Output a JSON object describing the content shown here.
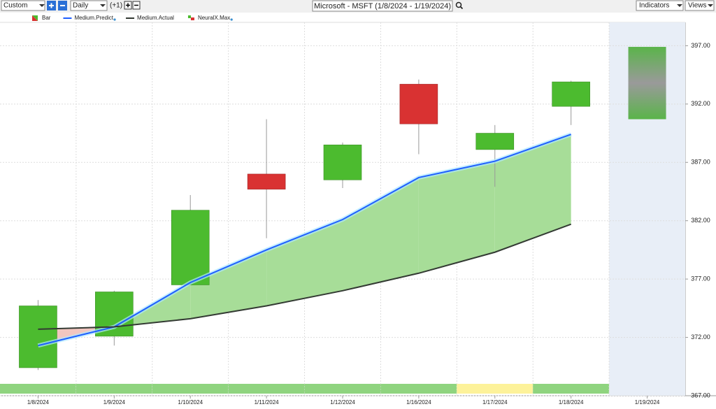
{
  "toolbar": {
    "period": "Custom",
    "interval": "Daily",
    "offset": "(+1)",
    "title": "Microsoft - MSFT (1/8/2024 - 1/19/2024)",
    "indicators": "Indicators",
    "views": "Views"
  },
  "chart_data": {
    "type": "candlestick",
    "categories": [
      "1/8/2024",
      "1/9/2024",
      "1/10/2024",
      "1/11/2024",
      "1/12/2024",
      "1/16/2024",
      "1/17/2024",
      "1/18/2024",
      "1/19/2024"
    ],
    "candles": {
      "name": "Bar",
      "open": [
        369.4,
        372.1,
        376.5,
        386.0,
        385.5,
        393.7,
        388.1,
        391.8,
        null
      ],
      "high": [
        375.2,
        376.0,
        384.2,
        390.7,
        388.7,
        394.1,
        390.2,
        394.0,
        null
      ],
      "low": [
        369.2,
        371.3,
        376.5,
        380.5,
        384.8,
        387.7,
        384.9,
        390.2,
        null
      ],
      "close": [
        374.7,
        375.9,
        382.9,
        384.7,
        388.5,
        390.3,
        389.5,
        393.9,
        null
      ],
      "up_color": "#4cbb2f",
      "down_color": "#d93232"
    },
    "series": [
      {
        "name": "Medium.Predict",
        "color": "#1f5fff",
        "values": [
          371.3,
          372.9,
          376.7,
          379.5,
          382.1,
          385.7,
          387.1,
          389.4,
          null
        ]
      },
      {
        "name": "Medium.Actual",
        "color": "#333a33",
        "values": [
          372.7,
          372.9,
          373.6,
          374.7,
          376.0,
          377.5,
          379.3,
          381.7,
          null
        ]
      }
    ],
    "neuralx": {
      "name": "NeuralX.Max",
      "low": [
        null,
        null,
        null,
        null,
        null,
        null,
        null,
        null,
        390.7
      ],
      "high": [
        null,
        null,
        null,
        null,
        null,
        null,
        null,
        null,
        396.9
      ]
    },
    "signal_colors": [
      "#8fd47f",
      "#8fd47f",
      "#8fd47f",
      "#8fd47f",
      "#8fd47f",
      "#8fd47f",
      "#fdf29a",
      "#8fd47f",
      null
    ],
    "ylim": [
      367,
      399
    ],
    "yticks": [
      {
        "value": 367,
        "label": "367.00"
      },
      {
        "value": 372,
        "label": "372.00"
      },
      {
        "value": 377,
        "label": "377.00"
      },
      {
        "value": 382,
        "label": "382.00"
      },
      {
        "value": 387,
        "label": "387.00"
      },
      {
        "value": 392,
        "label": "392.00"
      },
      {
        "value": 397,
        "label": "397.00"
      }
    ],
    "grid": true
  }
}
